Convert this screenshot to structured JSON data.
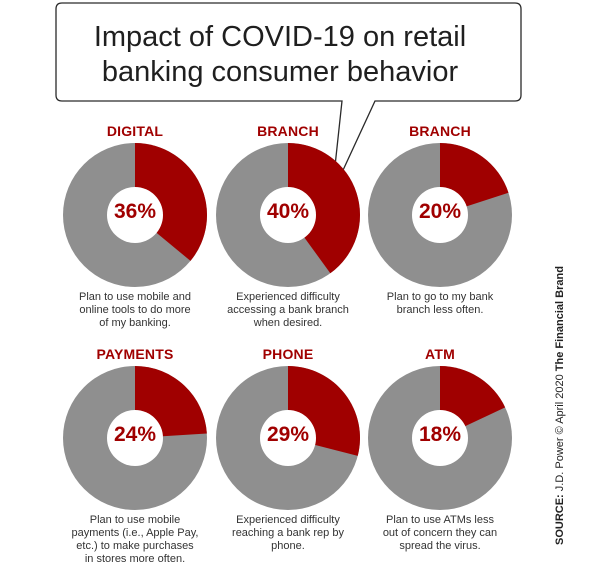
{
  "header": {
    "title_line1": "Impact of COVID-19 on retail",
    "title_line2": "banking consumer behavior"
  },
  "colors": {
    "accent": "#a00000",
    "remainder": "#8f8f8f",
    "hole": "#ffffff"
  },
  "chart_data": [
    {
      "type": "pie",
      "category": "DIGITAL",
      "value": 36,
      "label": "36%",
      "description": [
        "Plan to use mobile and",
        "online tools to do more",
        "of my banking."
      ]
    },
    {
      "type": "pie",
      "category": "BRANCH",
      "value": 40,
      "label": "40%",
      "description": [
        "Experienced difficulty",
        "accessing a bank branch",
        "when desired."
      ]
    },
    {
      "type": "pie",
      "category": "BRANCH",
      "value": 20,
      "label": "20%",
      "description": [
        "Plan to go to my bank",
        "branch less often."
      ]
    },
    {
      "type": "pie",
      "category": "PAYMENTS",
      "value": 24,
      "label": "24%",
      "description": [
        "Plan to use mobile",
        "payments (i.e., Apple Pay,",
        "etc.) to make purchases",
        "in stores more often."
      ]
    },
    {
      "type": "pie",
      "category": "PHONE",
      "value": 29,
      "label": "29%",
      "description": [
        "Experienced difficulty",
        "reaching a bank rep by",
        "phone."
      ]
    },
    {
      "type": "pie",
      "category": "ATM",
      "value": 18,
      "label": "18%",
      "description": [
        "Plan to use ATMs less",
        "out of concern they can",
        "spread the virus."
      ]
    }
  ],
  "source": {
    "label": "SOURCE:",
    "text": " J.D. Power © April 2020 ",
    "brand": "The Financial Brand"
  }
}
